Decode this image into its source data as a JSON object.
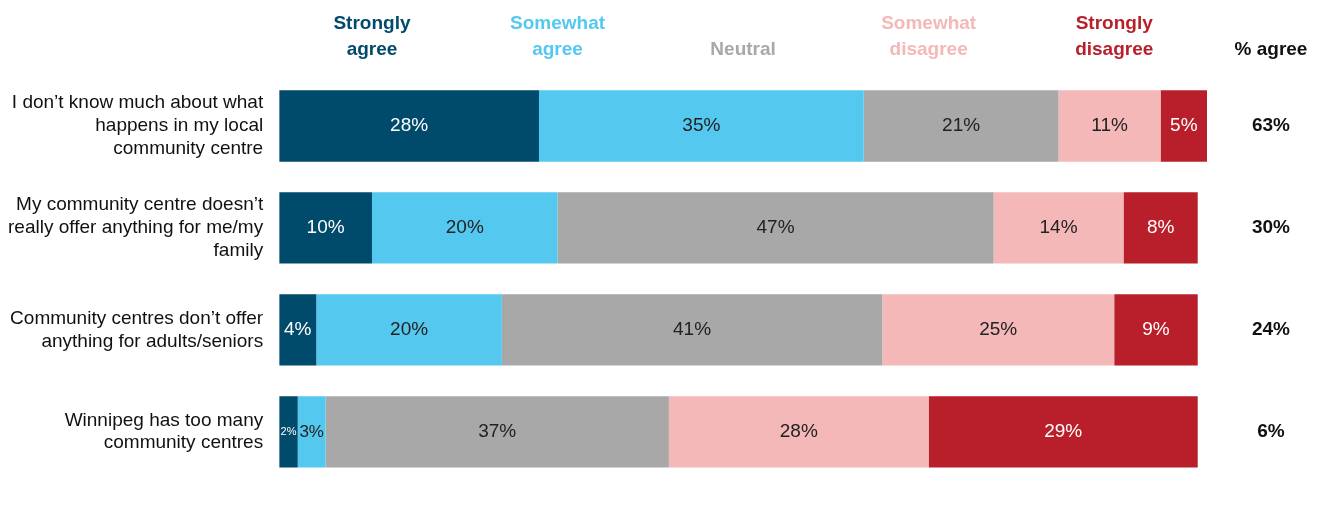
{
  "chart_data": {
    "type": "bar",
    "orientation": "horizontal",
    "stacked": true,
    "categories": [
      "I don’t know much about what happens in my local community centre",
      "My community centre doesn’t really offer anything for me/my family",
      "Community centres don’t offer anything for adults/seniors",
      "Winnipeg has too many community centres"
    ],
    "series": [
      {
        "name": "Strongly agree",
        "color": "#004a6b",
        "values": [
          28,
          10,
          4,
          2
        ],
        "value_labels": [
          "28%",
          "10%",
          "4%",
          "2%"
        ]
      },
      {
        "name": "Somewhat agree",
        "color": "#55c8f0",
        "values": [
          35,
          20,
          20,
          3
        ],
        "value_labels": [
          "35%",
          "20%",
          "20%",
          "3%"
        ]
      },
      {
        "name": "Neutral",
        "color": "#a8a8a8",
        "values": [
          21,
          47,
          41,
          37
        ],
        "value_labels": [
          "21%",
          "47%",
          "41%",
          "37%"
        ]
      },
      {
        "name": "Somewhat disagree",
        "color": "#f5b8b8",
        "values": [
          11,
          14,
          25,
          28
        ],
        "value_labels": [
          "11%",
          "14%",
          "25%",
          "28%"
        ]
      },
      {
        "name": "Strongly disagree",
        "color": "#b81f2a",
        "values": [
          5,
          8,
          9,
          29
        ],
        "value_labels": [
          "5%",
          "8%",
          "9%",
          "29%"
        ]
      }
    ],
    "legend": "top",
    "tick_labels": "y",
    "annotations": [
      "% agree",
      "63%",
      "30%",
      "24%",
      "6%"
    ]
  }
}
